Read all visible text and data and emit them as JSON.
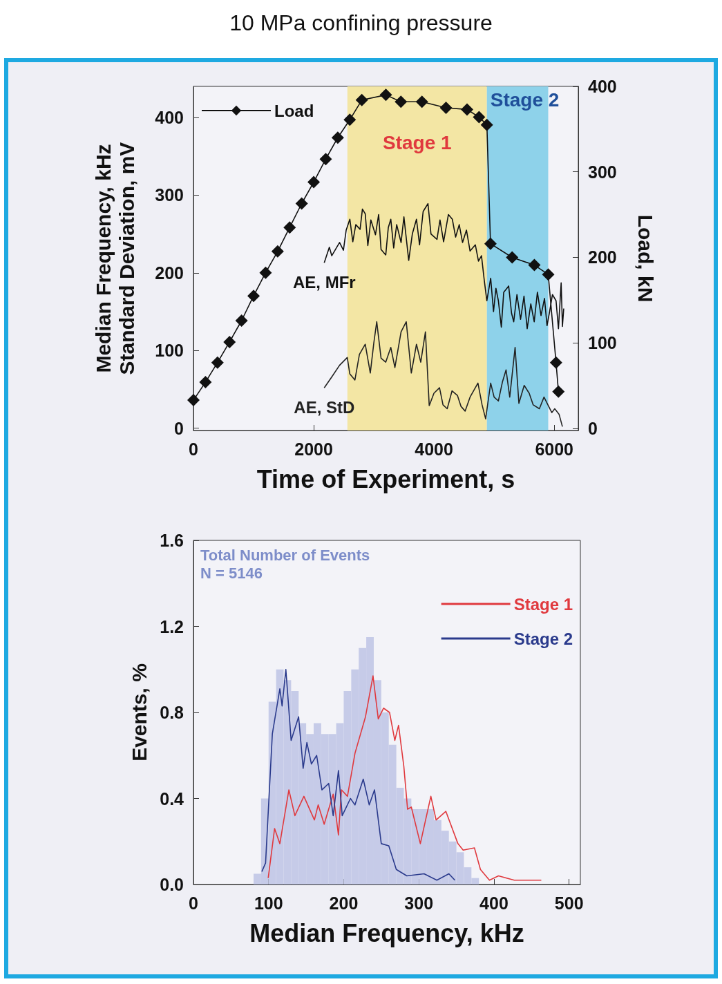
{
  "chart_data": [
    {
      "type": "line",
      "title": "10 MPa confining pressure",
      "xlabel": "Time of Experiment, s",
      "ylabel": "Median Frequency, kHz\nStandard Deviation, mV",
      "y2label": "Load, kN",
      "xlim": [
        0,
        6400
      ],
      "xticks": [
        0,
        2000,
        4000,
        6000
      ],
      "ylim": [
        -3,
        440
      ],
      "yticks": [
        0,
        100,
        200,
        300,
        400
      ],
      "y2lim": [
        -2.5,
        400
      ],
      "y2ticks": [
        0,
        100,
        200,
        300,
        400
      ],
      "grid": false,
      "legend": "top left",
      "bands": [
        {
          "axis": "x",
          "from": 2560,
          "to": 4880,
          "label": "Stage 1",
          "color": "#f3e6a4"
        },
        {
          "axis": "x",
          "from": 4880,
          "to": 5900,
          "label": "Stage 2",
          "color": "#8ed2ea"
        }
      ],
      "series": [
        {
          "name": "Load",
          "color": "#111111",
          "axis": "y2",
          "marker": "diamond",
          "x": [
            0,
            200,
            400,
            600,
            800,
            1000,
            1200,
            1400,
            1600,
            1800,
            2000,
            2200,
            2400,
            2600,
            2800,
            3200,
            3450,
            3800,
            4200,
            4550,
            4750,
            4880,
            4940,
            5300,
            5670,
            5900,
            6030,
            6070
          ],
          "values": [
            33,
            54,
            77,
            101,
            126,
            155,
            182,
            207,
            235,
            263,
            288,
            315,
            340,
            361,
            384,
            390,
            382,
            382,
            375,
            373,
            364,
            355,
            216,
            200,
            191,
            180,
            77,
            43
          ]
        },
        {
          "name": "AE, MFr",
          "color": "#111111",
          "marker": "none",
          "x": [
            2175,
            2260,
            2300,
            2430,
            2494,
            2540,
            2601,
            2650,
            2700,
            2771,
            2810,
            2857,
            2900,
            2950,
            3027,
            3080,
            3120,
            3198,
            3240,
            3282,
            3330,
            3380,
            3453,
            3500,
            3580,
            3640,
            3709,
            3760,
            3820,
            3900,
            3950,
            4050,
            4100,
            4160,
            4240,
            4305,
            4360,
            4420,
            4475,
            4540,
            4600,
            4688,
            4740,
            4790,
            4837,
            4879,
            4943,
            4990,
            5030,
            5071,
            5120,
            5160,
            5242,
            5290,
            5326,
            5380,
            5440,
            5497,
            5550,
            5610,
            5667,
            5720,
            5780,
            5838,
            5880,
            5923,
            5970,
            6030,
            6070,
            6115,
            6136,
            6158
          ],
          "values": [
            213,
            233,
            222,
            239,
            229,
            255,
            269,
            240,
            262,
            256,
            282,
            276,
            235,
            268,
            249,
            275,
            230,
            223,
            258,
            269,
            232,
            262,
            239,
            272,
            216,
            250,
            269,
            236,
            279,
            289,
            250,
            243,
            268,
            240,
            275,
            269,
            246,
            262,
            239,
            255,
            228,
            236,
            215,
            222,
            190,
            164,
            193,
            150,
            180,
            164,
            130,
            175,
            183,
            148,
            137,
            172,
            140,
            170,
            128,
            160,
            137,
            175,
            145,
            167,
            132,
            150,
            172,
            164,
            128,
            187,
            131,
            154
          ]
        },
        {
          "name": "AE, StD",
          "color": "#222222",
          "marker": "none",
          "x": [
            2175,
            2300,
            2430,
            2558,
            2600,
            2685,
            2760,
            2857,
            2941,
            3000,
            3048,
            3120,
            3198,
            3282,
            3350,
            3453,
            3539,
            3623,
            3709,
            3780,
            3858,
            3921,
            4000,
            4092,
            4150,
            4220,
            4300,
            4391,
            4450,
            4518,
            4600,
            4731,
            4800,
            4859,
            4943,
            5000,
            5071,
            5140,
            5199,
            5260,
            5349,
            5412,
            5500,
            5583,
            5650,
            5753,
            5830,
            5902,
            5960,
            6008,
            6080,
            6136
          ],
          "values": [
            52,
            66,
            81,
            91,
            70,
            62,
            95,
            108,
            71,
            110,
            137,
            90,
            85,
            104,
            78,
            124,
            137,
            71,
            108,
            85,
            124,
            29,
            45,
            52,
            30,
            25,
            48,
            42,
            28,
            22,
            40,
            58,
            30,
            12,
            58,
            40,
            35,
            60,
            75,
            40,
            104,
            32,
            55,
            45,
            30,
            25,
            40,
            29,
            20,
            25,
            18,
            2
          ]
        }
      ]
    },
    {
      "type": "histogram",
      "xlabel": "Median Frequency, kHz",
      "ylabel": "Events, %",
      "xlim": [
        0,
        515
      ],
      "xticks": [
        0,
        100,
        200,
        300,
        400,
        500
      ],
      "ylim": [
        0,
        1.6
      ],
      "yticks": [
        {
          "value": 0,
          "label": "0.0"
        },
        0.4,
        0.8,
        1.2,
        1.6
      ],
      "grid": false,
      "legend": "top right",
      "color": "#c6cbe8",
      "annotations": [
        "Total Number of Events",
        "N = 5146"
      ],
      "bins": [
        80,
        90,
        100,
        110,
        120,
        130,
        140,
        150,
        160,
        170,
        180,
        190,
        200,
        210,
        220,
        230,
        240,
        250,
        260,
        270,
        280,
        290,
        300,
        310,
        320,
        330,
        340,
        350,
        360,
        370,
        380
      ],
      "values": [
        0.05,
        0.4,
        0.85,
        1.0,
        0.95,
        0.9,
        0.75,
        0.7,
        0.75,
        0.7,
        0.7,
        0.75,
        0.9,
        1.0,
        1.1,
        1.15,
        0.95,
        0.8,
        0.65,
        0.45,
        0.4,
        0.35,
        0.35,
        0.35,
        0.3,
        0.25,
        0.2,
        0.15,
        0.08,
        0.03
      ],
      "series": [
        {
          "name": "Stage 1",
          "type": "line",
          "color": "#e0393e",
          "x": [
            99.5,
            108,
            115,
            127,
            135,
            147,
            161,
            166,
            174,
            186,
            193,
            197,
            205,
            215,
            229,
            239,
            246,
            253,
            261,
            268,
            273,
            280,
            285,
            290,
            302,
            316,
            323,
            336,
            352,
            359,
            374,
            382,
            394,
            406,
            427,
            463
          ],
          "values": [
            0.03,
            0.26,
            0.19,
            0.44,
            0.32,
            0.41,
            0.3,
            0.37,
            0.28,
            0.42,
            0.23,
            0.44,
            0.41,
            0.61,
            0.78,
            0.97,
            0.77,
            0.82,
            0.8,
            0.67,
            0.74,
            0.55,
            0.35,
            0.36,
            0.19,
            0.41,
            0.3,
            0.34,
            0.19,
            0.16,
            0.17,
            0.07,
            0.02,
            0.04,
            0.02,
            0.02
          ]
        },
        {
          "name": "Stage 2",
          "type": "line",
          "color": "#2a3a8c",
          "x": [
            91,
            96,
            105,
            115,
            118,
            123,
            130,
            140,
            146,
            151,
            157,
            164,
            171,
            180,
            186,
            193,
            198,
            209,
            215,
            226,
            234,
            241,
            250,
            260,
            270,
            284,
            307,
            324,
            340,
            348
          ],
          "values": [
            0.06,
            0.1,
            0.7,
            0.91,
            0.83,
            1.0,
            0.67,
            0.78,
            0.54,
            0.66,
            0.56,
            0.6,
            0.44,
            0.47,
            0.32,
            0.53,
            0.32,
            0.4,
            0.37,
            0.49,
            0.37,
            0.44,
            0.19,
            0.18,
            0.07,
            0.04,
            0.05,
            0.02,
            0.05,
            0.02
          ]
        }
      ]
    }
  ]
}
